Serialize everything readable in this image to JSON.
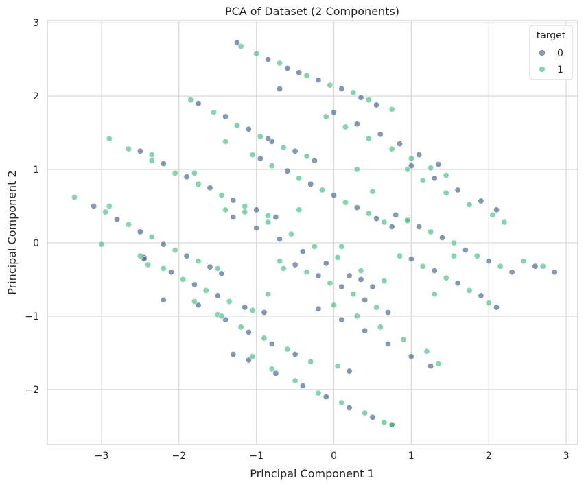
{
  "chart_data": {
    "type": "scatter",
    "title": "PCA of Dataset (2 Components)",
    "xlabel": "Principal Component 1",
    "ylabel": "Principal Component 2",
    "xlim": [
      -3.7,
      3.15
    ],
    "ylim": [
      -2.75,
      3.03
    ],
    "xticks": [
      -3,
      -2,
      -1,
      0,
      1,
      2,
      3
    ],
    "yticks": [
      -2,
      -1,
      0,
      1,
      2,
      3
    ],
    "xtick_labels": [
      "−3",
      "−2",
      "−1",
      "0",
      "1",
      "2",
      "3"
    ],
    "ytick_labels": [
      "−2",
      "−1",
      "0",
      "1",
      "2",
      "3"
    ],
    "grid": true,
    "legend": {
      "title": "target",
      "placement": "top-right",
      "entries": [
        {
          "label": "0",
          "color": "#3f5f8a"
        },
        {
          "label": "1",
          "color": "#3fbf7f"
        }
      ]
    },
    "marker_alpha": 0.65,
    "series": [
      {
        "name": "0",
        "color": "#3f5f8a",
        "x": [
          -1.25,
          -0.85,
          -0.6,
          -0.45,
          -0.2,
          0.1,
          0.35,
          0.55,
          -1.75,
          -1.4,
          -1.1,
          -0.8,
          -0.5,
          -0.25,
          0.0,
          0.3,
          0.6,
          0.85,
          1.1,
          1.35,
          -2.5,
          -2.2,
          -1.9,
          -1.6,
          -1.3,
          -1.0,
          -0.75,
          -0.95,
          -0.6,
          -0.3,
          0.0,
          0.3,
          0.55,
          0.75,
          1.0,
          1.3,
          1.6,
          1.9,
          2.1,
          -3.1,
          -2.8,
          -2.5,
          -2.2,
          -1.9,
          -1.6,
          -1.45,
          -1.3,
          -1.0,
          -0.7,
          -0.4,
          -0.1,
          0.2,
          0.5,
          0.8,
          1.1,
          1.4,
          1.7,
          2.0,
          2.3,
          2.6,
          2.85,
          -2.45,
          -2.1,
          -1.8,
          -1.5,
          -1.15,
          -0.9,
          -0.5,
          -0.2,
          0.1,
          0.4,
          0.7,
          1.0,
          1.3,
          1.6,
          1.9,
          2.1,
          -1.75,
          -1.4,
          -1.1,
          -0.8,
          -0.5,
          -0.2,
          0.1,
          0.4,
          0.7,
          1.0,
          1.25,
          -1.1,
          -0.75,
          -0.4,
          -0.1,
          0.2,
          0.5,
          0.75,
          -2.2,
          -2.45,
          -1.3,
          0.2,
          -0.7,
          0.35,
          -0.85
        ],
        "y": [
          2.73,
          2.5,
          2.38,
          2.32,
          2.22,
          2.1,
          1.98,
          1.88,
          1.9,
          1.72,
          1.55,
          1.38,
          1.25,
          1.12,
          1.78,
          1.62,
          1.48,
          1.35,
          1.2,
          1.07,
          1.25,
          1.08,
          0.9,
          0.75,
          0.58,
          0.45,
          0.35,
          1.15,
          0.98,
          0.8,
          0.65,
          0.48,
          0.33,
          0.22,
          1.05,
          0.88,
          0.72,
          0.57,
          0.45,
          0.5,
          0.32,
          0.15,
          -0.02,
          -0.18,
          -0.33,
          -0.42,
          0.35,
          0.2,
          0.05,
          -0.12,
          -0.28,
          -0.45,
          -0.6,
          0.38,
          0.22,
          0.07,
          -0.1,
          -0.25,
          -0.4,
          -0.32,
          -0.4,
          -0.2,
          -0.4,
          -0.57,
          -0.72,
          -0.88,
          -0.95,
          -0.3,
          -0.45,
          -0.6,
          -0.78,
          -0.95,
          -0.22,
          -0.38,
          -0.55,
          -0.72,
          -0.88,
          -0.85,
          -1.05,
          -1.22,
          -1.38,
          -1.52,
          -0.9,
          -1.05,
          -1.2,
          -1.38,
          -1.55,
          -1.68,
          -1.6,
          -1.78,
          -1.95,
          -2.1,
          -2.25,
          -2.38,
          -2.48,
          -0.78,
          -0.22,
          -1.52,
          -1.75,
          2.1,
          -0.5,
          1.42
        ]
      },
      {
        "name": "1",
        "color": "#3fbf7f",
        "x": [
          -1.2,
          -1.0,
          -0.7,
          -0.35,
          -0.05,
          0.25,
          0.45,
          0.75,
          -1.85,
          -1.55,
          -1.25,
          -0.95,
          -0.65,
          -0.35,
          -0.1,
          0.15,
          0.45,
          0.75,
          1.0,
          1.25,
          1.45,
          -2.9,
          -2.65,
          -2.35,
          -2.05,
          -1.75,
          -1.45,
          -1.15,
          -0.85,
          -1.05,
          -0.8,
          -0.45,
          -0.15,
          0.15,
          0.45,
          0.65,
          0.95,
          1.15,
          1.45,
          1.75,
          2.05,
          2.2,
          -3.35,
          -2.95,
          -2.65,
          -2.35,
          -2.05,
          -1.75,
          -1.5,
          -1.15,
          -0.85,
          -0.55,
          -0.25,
          0.05,
          0.35,
          0.65,
          0.95,
          1.25,
          1.55,
          1.85,
          2.15,
          2.45,
          2.7,
          -2.5,
          -2.2,
          -1.95,
          -1.65,
          -1.35,
          -1.05,
          -0.7,
          -0.35,
          -0.05,
          0.25,
          0.55,
          0.85,
          1.15,
          1.45,
          1.75,
          2.0,
          -1.8,
          -1.5,
          -1.2,
          -0.9,
          -0.6,
          -0.3,
          0.0,
          0.3,
          0.6,
          0.9,
          1.2,
          1.35,
          -1.05,
          -0.8,
          -0.5,
          -0.2,
          0.1,
          0.4,
          0.65,
          0.75,
          -3.0,
          -2.9,
          -2.35,
          -2.4,
          -1.4,
          -1.8,
          -1.4,
          0.3,
          0.5,
          -0.45,
          0.95,
          0.1,
          1.55,
          -0.65,
          -0.85,
          -1.45,
          0.05,
          1.3
        ],
        "y": [
          2.68,
          2.58,
          2.45,
          2.28,
          2.15,
          2.05,
          1.95,
          1.82,
          1.95,
          1.78,
          1.6,
          1.45,
          1.3,
          1.18,
          1.72,
          1.58,
          1.42,
          1.28,
          1.15,
          1.02,
          0.92,
          1.42,
          1.28,
          1.12,
          0.95,
          0.8,
          0.65,
          0.5,
          0.37,
          1.2,
          1.05,
          0.88,
          0.72,
          0.55,
          0.4,
          0.28,
          1.0,
          0.85,
          0.68,
          0.52,
          0.38,
          0.28,
          0.62,
          0.42,
          0.25,
          0.08,
          -0.1,
          -0.25,
          -0.35,
          0.42,
          0.28,
          0.12,
          -0.05,
          -0.2,
          -0.38,
          -0.52,
          0.32,
          0.15,
          0.0,
          -0.18,
          -0.32,
          -0.25,
          -0.32,
          -0.18,
          -0.35,
          -0.5,
          -0.65,
          -0.8,
          -0.92,
          -0.25,
          -0.4,
          -0.55,
          -0.7,
          -0.88,
          -0.18,
          -0.32,
          -0.48,
          -0.65,
          -0.82,
          -0.8,
          -0.98,
          -1.15,
          -1.3,
          -1.45,
          -1.62,
          -0.85,
          -1.0,
          -1.15,
          -1.32,
          -1.48,
          -1.65,
          -1.55,
          -1.72,
          -1.88,
          -2.05,
          -2.18,
          -2.32,
          -2.45,
          -2.48,
          -0.02,
          0.5,
          1.2,
          -0.3,
          1.38,
          0.95,
          0.45,
          1.0,
          0.7,
          0.45,
          0.3,
          -0.05,
          -0.18,
          -0.35,
          -0.7,
          -1.0,
          -1.68,
          -0.7
        ]
      }
    ]
  }
}
